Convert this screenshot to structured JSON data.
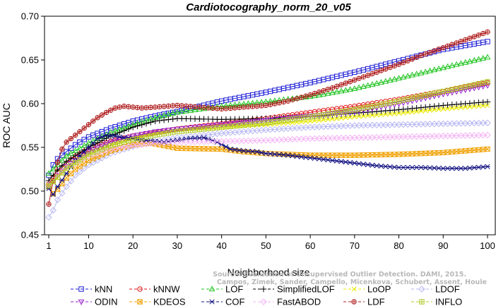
{
  "chart_data": {
    "type": "line",
    "title": "Cardiotocography_norm_20_v05",
    "xlabel": "Neighborhood size",
    "ylabel": "ROC AUC",
    "xlim": [
      1,
      100
    ],
    "ylim": [
      0.45,
      0.7
    ],
    "xticks": [
      1,
      10,
      20,
      30,
      40,
      50,
      60,
      70,
      80,
      90,
      100
    ],
    "yticks": [
      0.45,
      0.5,
      0.55,
      0.6,
      0.65,
      0.7
    ],
    "ytick_labels": [
      "0.45",
      "0.50",
      "0.55",
      "0.60",
      "0.65",
      "0.70"
    ],
    "grid": false,
    "legend_position": "bottom",
    "watermark": [
      "Source: Evaluation of Unsupervised Outlier Detection. DAMI, 2015.",
      "Campos, Zimek, Sander, Campello, Micenkova, Schubert, Assent, Houle"
    ],
    "series": [
      {
        "name": "kNN",
        "color": "#1c1cd6",
        "marker": "square",
        "points": [
          [
            1,
            0.518
          ],
          [
            2,
            0.53
          ],
          [
            3,
            0.537
          ],
          [
            5,
            0.545
          ],
          [
            7,
            0.553
          ],
          [
            10,
            0.562
          ],
          [
            15,
            0.572
          ],
          [
            20,
            0.58
          ],
          [
            25,
            0.586
          ],
          [
            30,
            0.591
          ],
          [
            35,
            0.597
          ],
          [
            40,
            0.603
          ],
          [
            50,
            0.613
          ],
          [
            60,
            0.624
          ],
          [
            70,
            0.636
          ],
          [
            80,
            0.649
          ],
          [
            90,
            0.662
          ],
          [
            100,
            0.671
          ]
        ]
      },
      {
        "name": "kNNW",
        "color": "#e01818",
        "marker": "circle",
        "points": [
          [
            1,
            0.508
          ],
          [
            2,
            0.515
          ],
          [
            3,
            0.522
          ],
          [
            5,
            0.532
          ],
          [
            7,
            0.54
          ],
          [
            10,
            0.548
          ],
          [
            15,
            0.557
          ],
          [
            20,
            0.563
          ],
          [
            25,
            0.567
          ],
          [
            30,
            0.571
          ],
          [
            40,
            0.577
          ],
          [
            50,
            0.583
          ],
          [
            60,
            0.59
          ],
          [
            70,
            0.597
          ],
          [
            80,
            0.605
          ],
          [
            90,
            0.614
          ],
          [
            100,
            0.624
          ]
        ]
      },
      {
        "name": "LOF",
        "color": "#22c422",
        "marker": "triangle-up",
        "points": [
          [
            1,
            0.52
          ],
          [
            2,
            0.525
          ],
          [
            3,
            0.53
          ],
          [
            5,
            0.54
          ],
          [
            10,
            0.555
          ],
          [
            15,
            0.567
          ],
          [
            20,
            0.576
          ],
          [
            25,
            0.584
          ],
          [
            30,
            0.59
          ],
          [
            40,
            0.597
          ],
          [
            50,
            0.602
          ],
          [
            60,
            0.608
          ],
          [
            70,
            0.617
          ],
          [
            80,
            0.629
          ],
          [
            90,
            0.641
          ],
          [
            100,
            0.653
          ]
        ]
      },
      {
        "name": "SimplifiedLOF",
        "color": "#000000",
        "marker": "plus",
        "points": [
          [
            1,
            0.512
          ],
          [
            2,
            0.518
          ],
          [
            3,
            0.524
          ],
          [
            5,
            0.534
          ],
          [
            10,
            0.55
          ],
          [
            15,
            0.563
          ],
          [
            20,
            0.573
          ],
          [
            25,
            0.58
          ],
          [
            30,
            0.583
          ],
          [
            40,
            0.582
          ],
          [
            50,
            0.583
          ],
          [
            60,
            0.585
          ],
          [
            70,
            0.589
          ],
          [
            80,
            0.593
          ],
          [
            90,
            0.598
          ],
          [
            100,
            0.602
          ]
        ]
      },
      {
        "name": "LoOP",
        "color": "#e8e800",
        "marker": "cross",
        "points": [
          [
            1,
            0.505
          ],
          [
            3,
            0.515
          ],
          [
            5,
            0.525
          ],
          [
            10,
            0.542
          ],
          [
            15,
            0.553
          ],
          [
            20,
            0.56
          ],
          [
            25,
            0.566
          ],
          [
            30,
            0.57
          ],
          [
            40,
            0.573
          ],
          [
            50,
            0.576
          ],
          [
            60,
            0.58
          ],
          [
            70,
            0.585
          ],
          [
            80,
            0.589
          ],
          [
            90,
            0.594
          ],
          [
            100,
            0.598
          ]
        ]
      },
      {
        "name": "LDOF",
        "color": "#b6b6f2",
        "marker": "diamond",
        "points": [
          [
            1,
            0.47
          ],
          [
            2,
            0.478
          ],
          [
            3,
            0.49
          ],
          [
            5,
            0.505
          ],
          [
            7,
            0.518
          ],
          [
            10,
            0.53
          ],
          [
            15,
            0.543
          ],
          [
            20,
            0.551
          ],
          [
            25,
            0.557
          ],
          [
            30,
            0.561
          ],
          [
            40,
            0.566
          ],
          [
            50,
            0.57
          ],
          [
            60,
            0.573
          ],
          [
            70,
            0.575
          ],
          [
            80,
            0.576
          ],
          [
            90,
            0.577
          ],
          [
            100,
            0.578
          ]
        ]
      },
      {
        "name": "ODIN",
        "color": "#9822cc",
        "marker": "triangle-down",
        "points": [
          [
            1,
            0.505
          ],
          [
            3,
            0.518
          ],
          [
            5,
            0.528
          ],
          [
            10,
            0.545
          ],
          [
            15,
            0.556
          ],
          [
            20,
            0.563
          ],
          [
            25,
            0.568
          ],
          [
            30,
            0.571
          ],
          [
            40,
            0.576
          ],
          [
            50,
            0.581
          ],
          [
            60,
            0.586
          ],
          [
            70,
            0.591
          ],
          [
            80,
            0.6
          ],
          [
            90,
            0.611
          ],
          [
            100,
            0.621
          ]
        ]
      },
      {
        "name": "KDEOS",
        "color": "#f0a000",
        "marker": "square-x",
        "points": [
          [
            1,
            0.505
          ],
          [
            2,
            0.497
          ],
          [
            3,
            0.502
          ],
          [
            5,
            0.515
          ],
          [
            7,
            0.525
          ],
          [
            10,
            0.535
          ],
          [
            15,
            0.546
          ],
          [
            20,
            0.553
          ],
          [
            24,
            0.555
          ],
          [
            27,
            0.552
          ],
          [
            30,
            0.549
          ],
          [
            40,
            0.548
          ],
          [
            45,
            0.545
          ],
          [
            50,
            0.543
          ],
          [
            60,
            0.541
          ],
          [
            70,
            0.541
          ],
          [
            80,
            0.542
          ],
          [
            90,
            0.544
          ],
          [
            100,
            0.548
          ]
        ]
      },
      {
        "name": "COF",
        "color": "#101080",
        "marker": "asterisk",
        "points": [
          [
            1,
            0.503
          ],
          [
            2,
            0.496
          ],
          [
            3,
            0.505
          ],
          [
            5,
            0.52
          ],
          [
            7,
            0.535
          ],
          [
            10,
            0.55
          ],
          [
            12,
            0.56
          ],
          [
            14,
            0.564
          ],
          [
            16,
            0.563
          ],
          [
            18,
            0.561
          ],
          [
            20,
            0.56
          ],
          [
            23,
            0.558
          ],
          [
            27,
            0.556
          ],
          [
            30,
            0.558
          ],
          [
            33,
            0.56
          ],
          [
            36,
            0.561
          ],
          [
            39,
            0.556
          ],
          [
            42,
            0.548
          ],
          [
            45,
            0.546
          ],
          [
            48,
            0.545
          ],
          [
            50,
            0.543
          ],
          [
            55,
            0.541
          ],
          [
            60,
            0.538
          ],
          [
            65,
            0.535
          ],
          [
            70,
            0.532
          ],
          [
            75,
            0.529
          ],
          [
            80,
            0.527
          ],
          [
            85,
            0.527
          ],
          [
            90,
            0.526
          ],
          [
            95,
            0.526
          ],
          [
            100,
            0.528
          ]
        ]
      },
      {
        "name": "FastABOD",
        "color": "#f4b4f4",
        "marker": "diamond",
        "points": [
          [
            1,
            0.507
          ],
          [
            3,
            0.518
          ],
          [
            5,
            0.527
          ],
          [
            10,
            0.54
          ],
          [
            15,
            0.548
          ],
          [
            20,
            0.552
          ],
          [
            25,
            0.555
          ],
          [
            30,
            0.556
          ],
          [
            40,
            0.557
          ],
          [
            50,
            0.558
          ],
          [
            60,
            0.56
          ],
          [
            70,
            0.561
          ],
          [
            80,
            0.562
          ],
          [
            90,
            0.563
          ],
          [
            100,
            0.564
          ]
        ]
      },
      {
        "name": "LDF",
        "color": "#b02020",
        "marker": "circle-plus",
        "points": [
          [
            1,
            0.485
          ],
          [
            2,
            0.512
          ],
          [
            3,
            0.533
          ],
          [
            4,
            0.548
          ],
          [
            5,
            0.556
          ],
          [
            6,
            0.56
          ],
          [
            8,
            0.568
          ],
          [
            10,
            0.576
          ],
          [
            12,
            0.584
          ],
          [
            14,
            0.59
          ],
          [
            16,
            0.595
          ],
          [
            18,
            0.597
          ],
          [
            20,
            0.596
          ],
          [
            22,
            0.595
          ],
          [
            25,
            0.596
          ],
          [
            30,
            0.598
          ],
          [
            35,
            0.596
          ],
          [
            40,
            0.594
          ],
          [
            45,
            0.596
          ],
          [
            50,
            0.598
          ],
          [
            55,
            0.603
          ],
          [
            60,
            0.61
          ],
          [
            65,
            0.618
          ],
          [
            70,
            0.627
          ],
          [
            75,
            0.636
          ],
          [
            80,
            0.645
          ],
          [
            85,
            0.655
          ],
          [
            90,
            0.664
          ],
          [
            95,
            0.673
          ],
          [
            100,
            0.682
          ]
        ]
      },
      {
        "name": "INFLO",
        "color": "#b0c828",
        "marker": "square-plus",
        "points": [
          [
            1,
            0.506
          ],
          [
            3,
            0.516
          ],
          [
            5,
            0.526
          ],
          [
            10,
            0.542
          ],
          [
            15,
            0.552
          ],
          [
            20,
            0.559
          ],
          [
            25,
            0.564
          ],
          [
            30,
            0.568
          ],
          [
            40,
            0.573
          ],
          [
            50,
            0.578
          ],
          [
            60,
            0.585
          ],
          [
            70,
            0.593
          ],
          [
            80,
            0.603
          ],
          [
            90,
            0.614
          ],
          [
            100,
            0.625
          ]
        ]
      }
    ]
  }
}
